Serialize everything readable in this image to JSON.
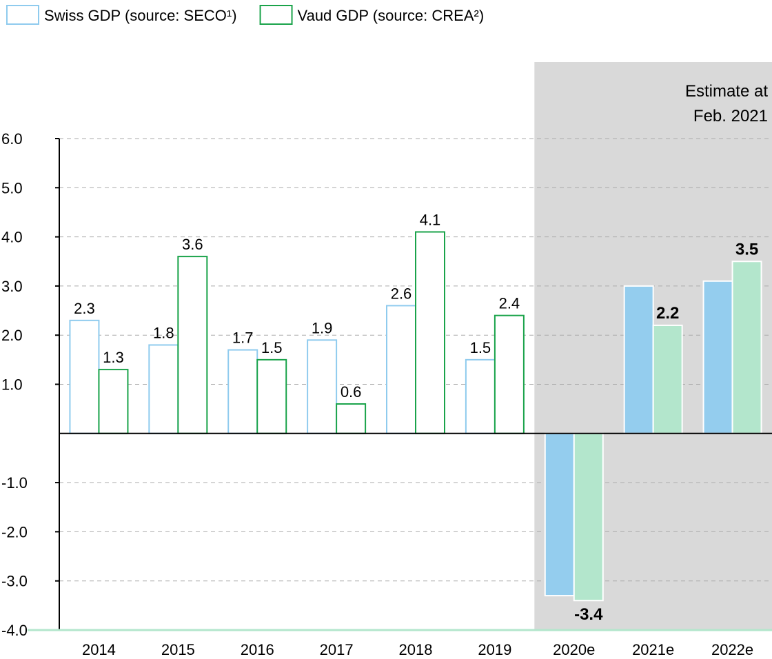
{
  "chart_data": {
    "type": "bar",
    "categories": [
      "2014",
      "2015",
      "2016",
      "2017",
      "2018",
      "2019",
      "2020e",
      "2021e",
      "2022e"
    ],
    "series": [
      {
        "name": "Swiss GDP (source: SECO¹)",
        "color": "#8fcbee",
        "fill_color": "#94cdee",
        "values": [
          2.3,
          1.8,
          1.7,
          1.9,
          2.6,
          1.5,
          -3.3,
          3.0,
          3.1
        ],
        "value_labels": [
          "2.3",
          "1.8",
          "1.7",
          "1.9",
          "2.6",
          "1.5",
          null,
          null,
          null
        ]
      },
      {
        "name": "Vaud GDP (source: CREA²)",
        "color": "#1aa34a",
        "fill_color": "#b3e6cc",
        "values": [
          1.3,
          3.6,
          1.5,
          0.6,
          4.1,
          2.4,
          -3.4,
          2.2,
          3.5
        ],
        "value_labels": [
          "1.3",
          "3.6",
          "1.5",
          "0.6",
          "4.1",
          "2.4",
          "-3.4",
          "2.2",
          "3.5"
        ]
      }
    ],
    "ylim": [
      -4,
      6
    ],
    "yticks": [
      {
        "value": 6,
        "label": "6.0"
      },
      {
        "value": 5,
        "label": "5.0"
      },
      {
        "value": 4,
        "label": "4.0"
      },
      {
        "value": 3,
        "label": "3.0"
      },
      {
        "value": 2,
        "label": "2.0"
      },
      {
        "value": 1,
        "label": "1.0"
      },
      {
        "value": -1,
        "label": "-1.0"
      },
      {
        "value": -2,
        "label": "-2.0"
      },
      {
        "value": -3,
        "label": "-3.0"
      },
      {
        "value": -4,
        "label": "-4.0"
      }
    ],
    "grid": true,
    "estimate_from": "2020e",
    "annotation": [
      "Estimate at",
      "Feb. 2021"
    ]
  }
}
